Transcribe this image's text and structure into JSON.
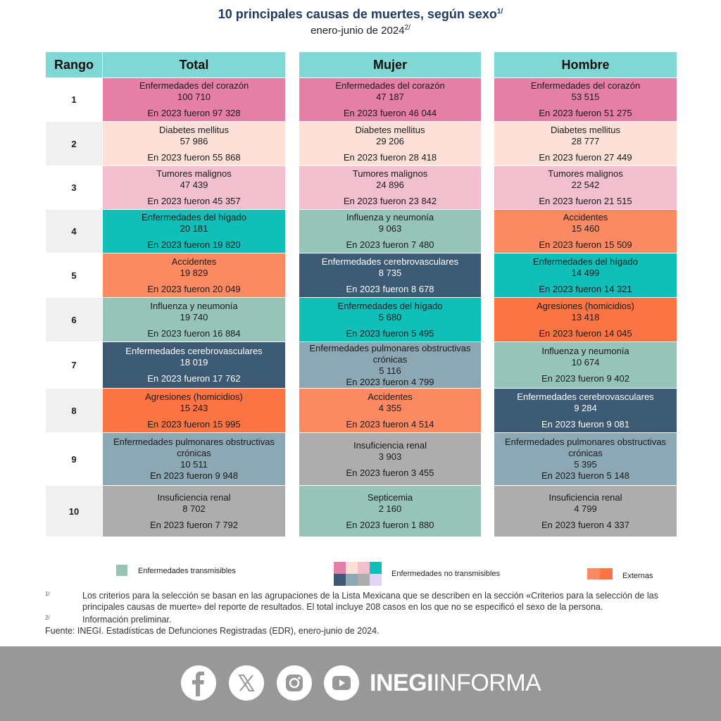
{
  "header": {
    "title": "10 principales causas de muertes, según sexo",
    "title_note": "1/",
    "subtitle": "enero-junio de 2024",
    "subtitle_note": "2/"
  },
  "table": {
    "columns": [
      "Rango",
      "Total",
      "Mujer",
      "Hombre"
    ],
    "ranks": [
      "1",
      "2",
      "3",
      "4",
      "5",
      "6",
      "7",
      "8",
      "9",
      "10"
    ],
    "total": [
      {
        "cause": "Enfermedades del corazón",
        "value": "100 710",
        "prev": "En 2023 fueron 97 328",
        "color": "#e67fa6"
      },
      {
        "cause": "Diabetes mellitus",
        "value": "57 986",
        "prev": "En 2023 fueron 55 868",
        "color": "#fde0d8"
      },
      {
        "cause": "Tumores malignos",
        "value": "47 439",
        "prev": "En 2023 fueron 45 357",
        "color": "#f2bfce"
      },
      {
        "cause": "Enfermedades del hígado",
        "value": "20 181",
        "prev": "En 2023 fueron 19 820",
        "color": "#0fbfb8"
      },
      {
        "cause": "Accidentes",
        "value": "19 829",
        "prev": "En 2023 fueron 20 049",
        "color": "#fb8a63"
      },
      {
        "cause": "Influenza y neumonía",
        "value": "19 740",
        "prev": "En 2023 fueron 16 884",
        "color": "#96c4b8"
      },
      {
        "cause": "Enfermedades cerebrovasculares",
        "value": "18 019",
        "prev": "En 2023 fueron 17 762",
        "color": "#3c5a74"
      },
      {
        "cause": "Agresiones (homicidios)",
        "value": "15 243",
        "prev": "En 2023 fueron 15 995",
        "color": "#fb7443"
      },
      {
        "cause": "Enfermedades pulmonares obstructivas crónicas",
        "value": "10 511",
        "prev": "En 2023 fueron 9 948",
        "color": "#8ca8b5"
      },
      {
        "cause": "Insuficiencia renal",
        "value": "8 702",
        "prev": "En 2023 fueron 7 792",
        "color": "#adadad"
      }
    ],
    "mujer": [
      {
        "cause": "Enfermedades del corazón",
        "value": "47 187",
        "prev": "En 2023 fueron 46 044",
        "color": "#e67fa6"
      },
      {
        "cause": "Diabetes mellitus",
        "value": "29 206",
        "prev": "En 2023 fueron 28 418",
        "color": "#fde0d8"
      },
      {
        "cause": "Tumores malignos",
        "value": "24 896",
        "prev": "En 2023 fueron 23 842",
        "color": "#f2bfce"
      },
      {
        "cause": "Influenza y neumonía",
        "value": "9 063",
        "prev": "En 2023 fueron 7 480",
        "color": "#96c4b8"
      },
      {
        "cause": "Enfermedades cerebrovasculares",
        "value": "8 735",
        "prev": "En 2023 fueron 8 678",
        "color": "#3c5a74"
      },
      {
        "cause": "Enfermedades del hígado",
        "value": "5 680",
        "prev": "En 2023 fueron 5 495",
        "color": "#0fbfb8"
      },
      {
        "cause": "Enfermedades pulmonares obstructivas crónicas",
        "value": "5 116",
        "prev": "En 2023 fueron 4 799",
        "color": "#8ca8b5"
      },
      {
        "cause": "Accidentes",
        "value": "4 355",
        "prev": "En 2023 fueron 4 514",
        "color": "#fb8a63"
      },
      {
        "cause": "Insuficiencia renal",
        "value": "3 903",
        "prev": "En 2023 fueron 3 455",
        "color": "#adadad"
      },
      {
        "cause": "Septicemia",
        "value": "2 160",
        "prev": "En 2023 fueron 1 880",
        "color": "#96c4b8"
      }
    ],
    "hombre": [
      {
        "cause": "Enfermedades del corazón",
        "value": "53 515",
        "prev": "En 2023 fueron 51 275",
        "color": "#e67fa6"
      },
      {
        "cause": "Diabetes mellitus",
        "value": "28 777",
        "prev": "En 2023 fueron 27 449",
        "color": "#fde0d8"
      },
      {
        "cause": "Tumores malignos",
        "value": "22 542",
        "prev": "En 2023 fueron 21 515",
        "color": "#f2bfce"
      },
      {
        "cause": "Accidentes",
        "value": "15 460",
        "prev": "En 2023 fueron 15 509",
        "color": "#fb8a63"
      },
      {
        "cause": "Enfermedades del hígado",
        "value": "14 499",
        "prev": "En 2023 fueron 14 321",
        "color": "#0fbfb8"
      },
      {
        "cause": "Agresiones (homicidios)",
        "value": "13 418",
        "prev": "En 2023 fueron 14 045",
        "color": "#fb7443"
      },
      {
        "cause": "Influenza y neumonía",
        "value": "10 674",
        "prev": "En 2023 fueron 9 402",
        "color": "#96c4b8"
      },
      {
        "cause": "Enfermedades cerebrovasculares",
        "value": "9 284",
        "prev": "En 2023 fueron 9 081",
        "color": "#3c5a74"
      },
      {
        "cause": "Enfermedades pulmonares obstructivas crónicas",
        "value": "5 395",
        "prev": "En 2023 fueron 5 148",
        "color": "#8ca8b5"
      },
      {
        "cause": "Insuficiencia renal",
        "value": "4 799",
        "prev": "En 2023 fueron 4 337",
        "color": "#adadad"
      }
    ]
  },
  "legend": {
    "transmisibles": "Enfermedades  transmisibles",
    "no_transmisibles": "Enfermedades  no transmisibles",
    "externas": "Externas"
  },
  "notes": {
    "note1_mark": "1/",
    "note1": "Los criterios para la selección se basan en las agrupaciones de la Lista Mexicana que se describen en la sección «Criterios para la selección de las principales causas de muerte» del reporte de resultados. El total incluye 208 casos en los que no se especificó el sexo de la persona.",
    "note2_mark": "2/",
    "note2": "Información preliminar.",
    "source": "Fuente: INEGI. Estadísticas de Defunciones Registradas (EDR), enero-junio de 2024."
  },
  "footer": {
    "brand_bold": "INEGI",
    "brand_light": "INFORMA",
    "social": [
      "facebook-icon",
      "x-icon",
      "instagram-icon",
      "youtube-icon"
    ]
  }
}
